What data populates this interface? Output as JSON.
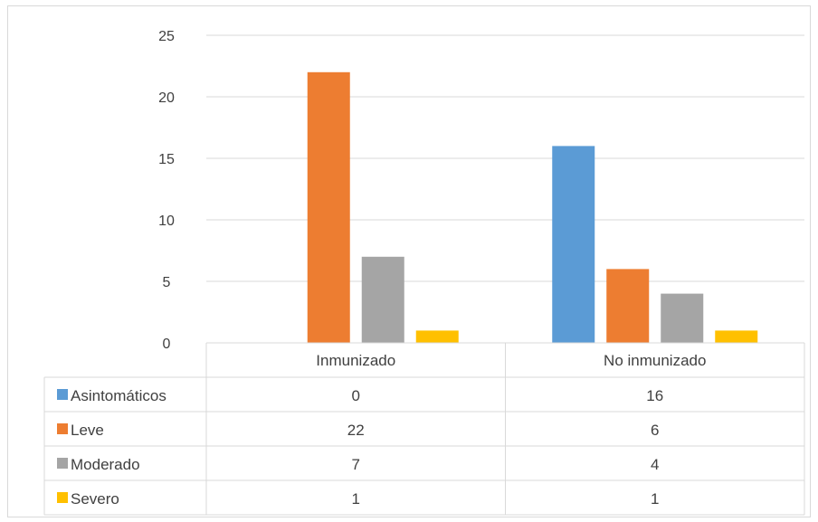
{
  "chart_data": {
    "type": "bar",
    "categories": [
      "Inmunizado",
      "No inmunizado"
    ],
    "series": [
      {
        "name": "Asintomáticos",
        "values": [
          0,
          16
        ],
        "color": "#5b9bd5"
      },
      {
        "name": "Leve",
        "values": [
          22,
          6
        ],
        "color": "#ed7d31"
      },
      {
        "name": "Moderado",
        "values": [
          7,
          4
        ],
        "color": "#a5a5a5"
      },
      {
        "name": "Severo",
        "values": [
          1,
          1
        ],
        "color": "#ffc000"
      }
    ],
    "ylim": [
      0,
      25
    ],
    "yticks": [
      0,
      5,
      10,
      15,
      20,
      25
    ],
    "grid": true,
    "legend": "data-table",
    "title": "",
    "xlabel": "",
    "ylabel": ""
  }
}
